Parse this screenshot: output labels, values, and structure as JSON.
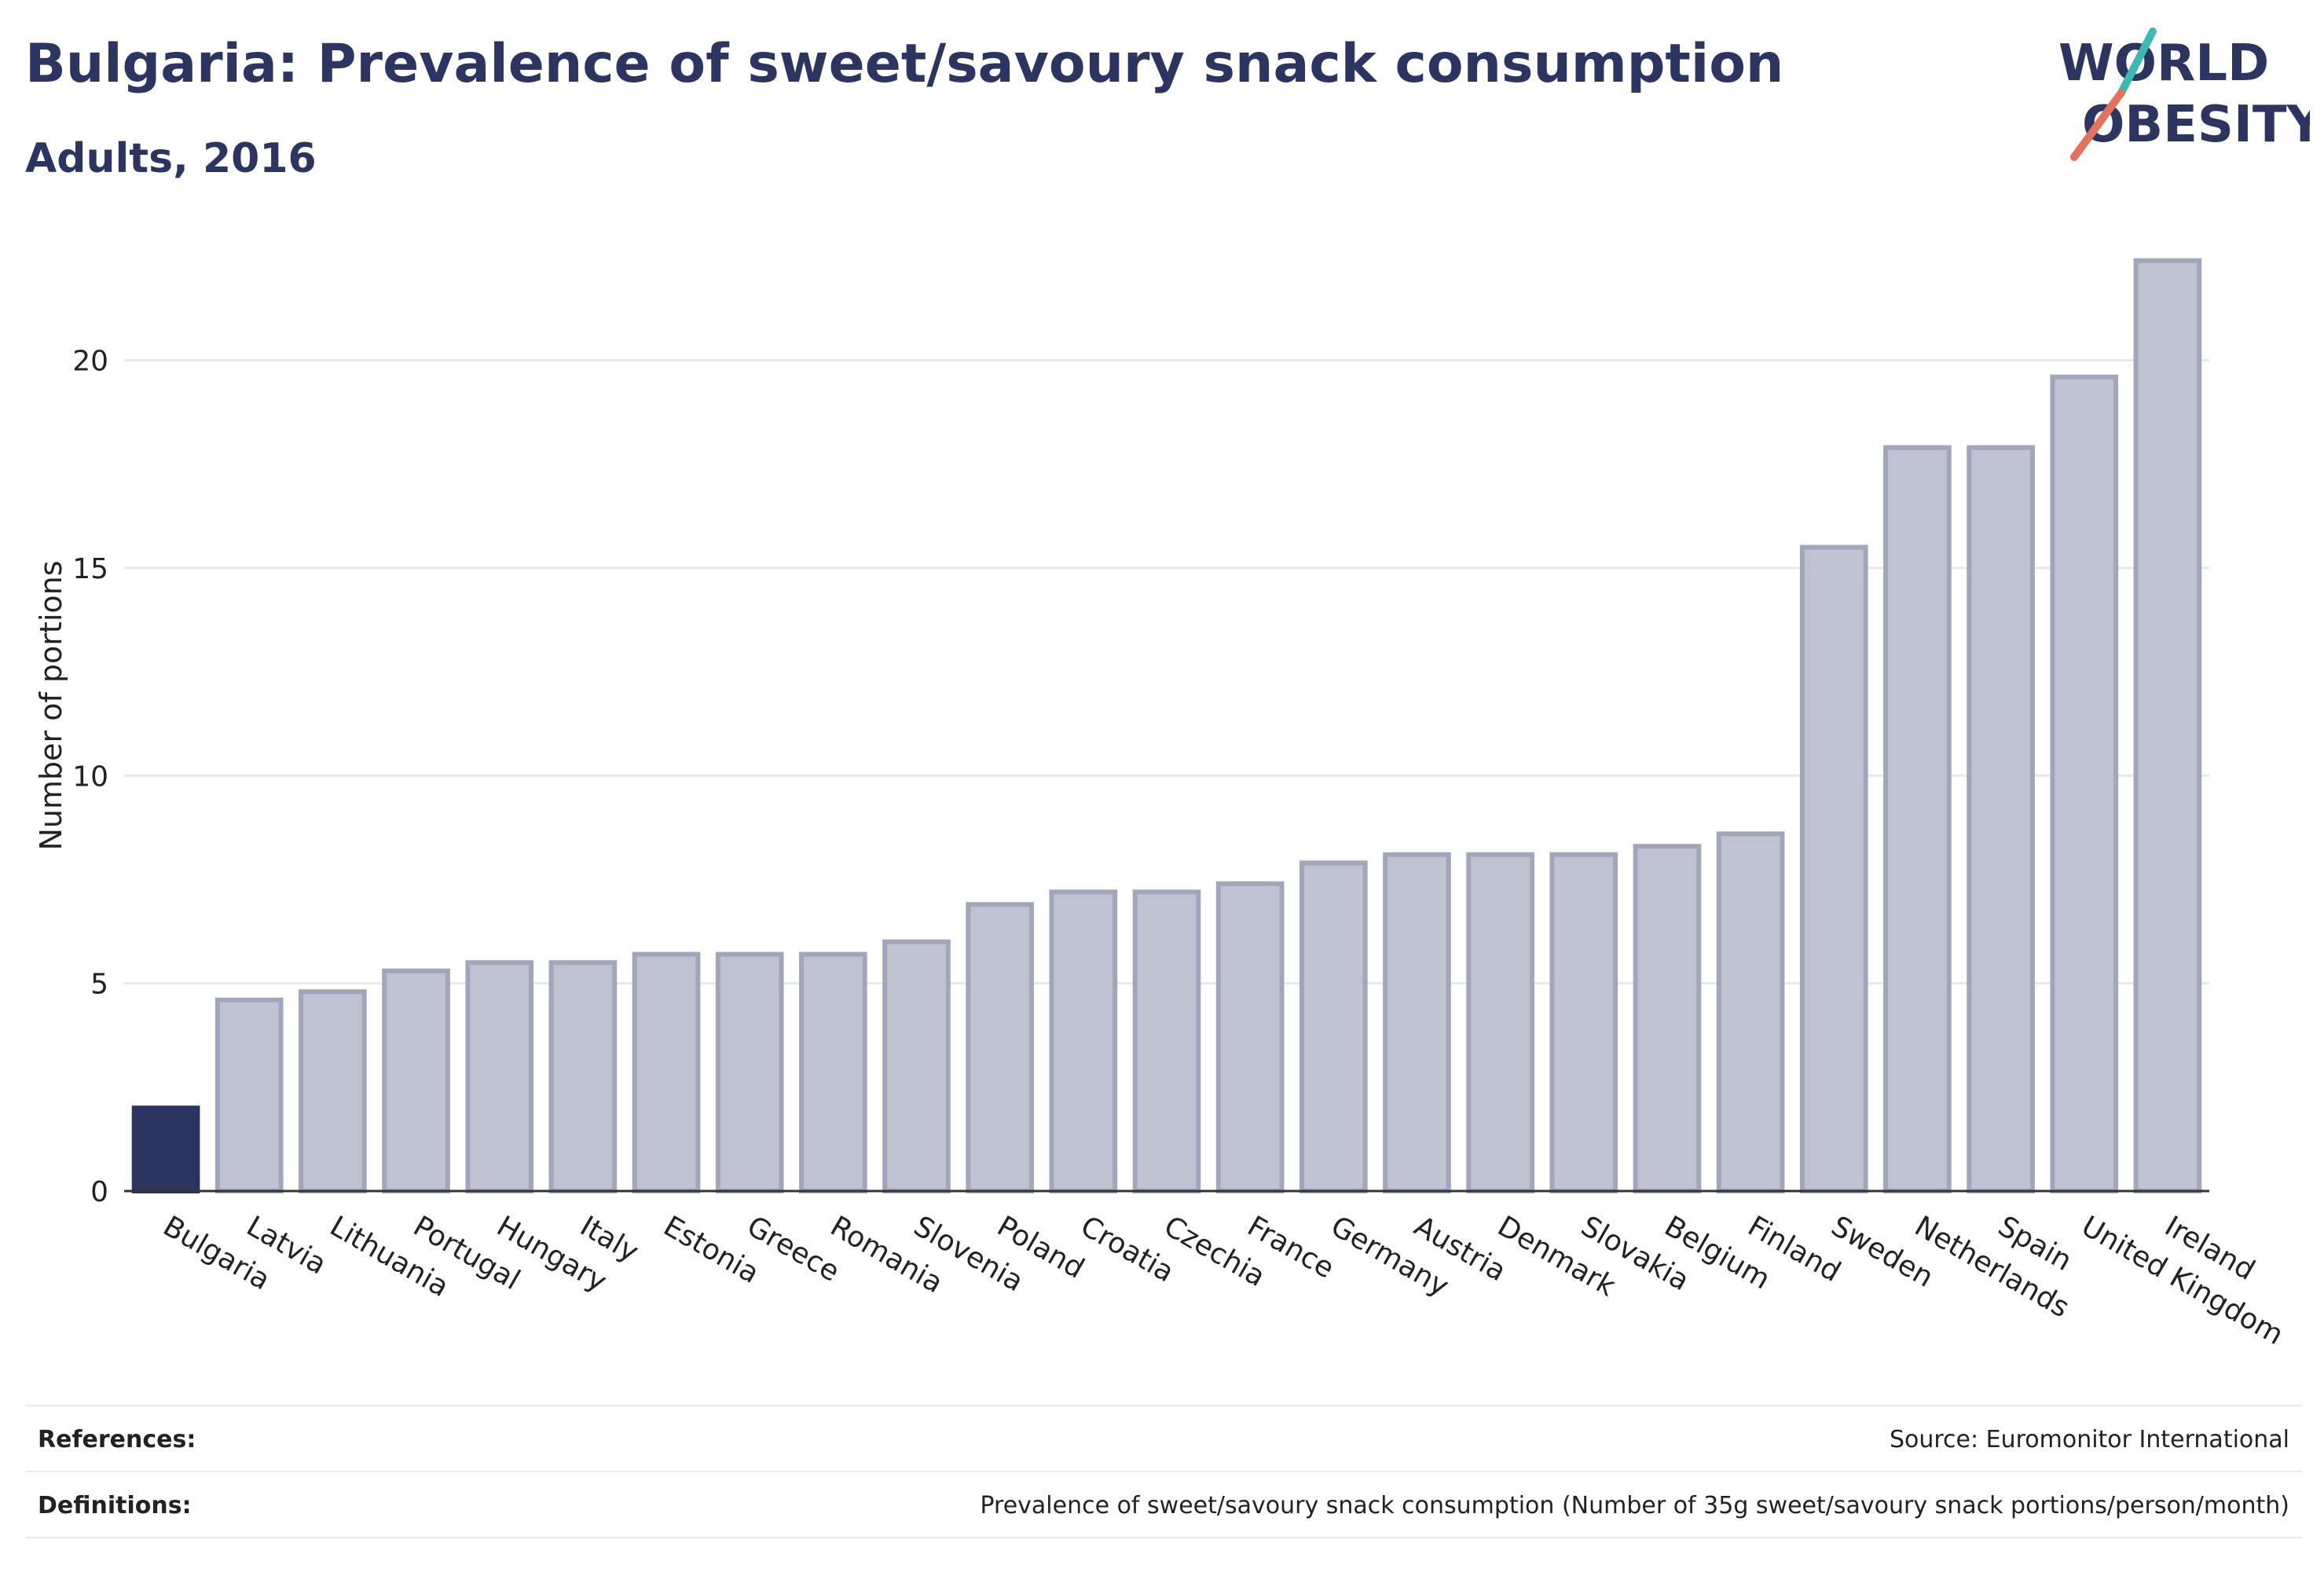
{
  "header": {
    "title": "Bulgaria: Prevalence of sweet/savoury snack consumption",
    "subtitle": "Adults, 2016"
  },
  "logo": {
    "line1": "WORLD",
    "line2": "OBESITY"
  },
  "colors": {
    "highlight_bar": "#2b3560",
    "other_bar_fill": "#bfc2d1",
    "other_bar_stroke": "#a1a6bb",
    "axis_text": "#222222",
    "grid": "#e6e8f0",
    "logo_teal": "#3db8b2",
    "logo_red": "#e2725b"
  },
  "chart_data": {
    "type": "bar",
    "title": "Bulgaria: Prevalence of sweet/savoury snack consumption",
    "subtitle": "Adults, 2016",
    "xlabel": "",
    "ylabel": "Number of portions",
    "ylim": [
      0,
      23
    ],
    "yticks": [
      0,
      5,
      10,
      15,
      20
    ],
    "grid": true,
    "highlight": "Bulgaria",
    "categories": [
      "Bulgaria",
      "Latvia",
      "Lithuania",
      "Portugal",
      "Hungary",
      "Italy",
      "Estonia",
      "Greece",
      "Romania",
      "Slovenia",
      "Poland",
      "Croatia",
      "Czechia",
      "France",
      "Germany",
      "Austria",
      "Denmark",
      "Slovakia",
      "Belgium",
      "Finland",
      "Sweden",
      "Netherlands",
      "Spain",
      "United Kingdom",
      "Ireland"
    ],
    "values": [
      2.0,
      4.6,
      4.8,
      5.3,
      5.5,
      5.5,
      5.7,
      5.7,
      5.7,
      6.0,
      6.9,
      7.2,
      7.2,
      7.4,
      7.9,
      8.1,
      8.1,
      8.1,
      8.3,
      8.6,
      15.5,
      17.9,
      17.9,
      19.6,
      22.4
    ]
  },
  "footer": {
    "references_label": "References:",
    "references_value": "Source: Euromonitor International",
    "definitions_label": "Definitions:",
    "definitions_value": "Prevalence of sweet/savoury snack consumption (Number of 35g sweet/savoury snack portions/person/month)"
  }
}
